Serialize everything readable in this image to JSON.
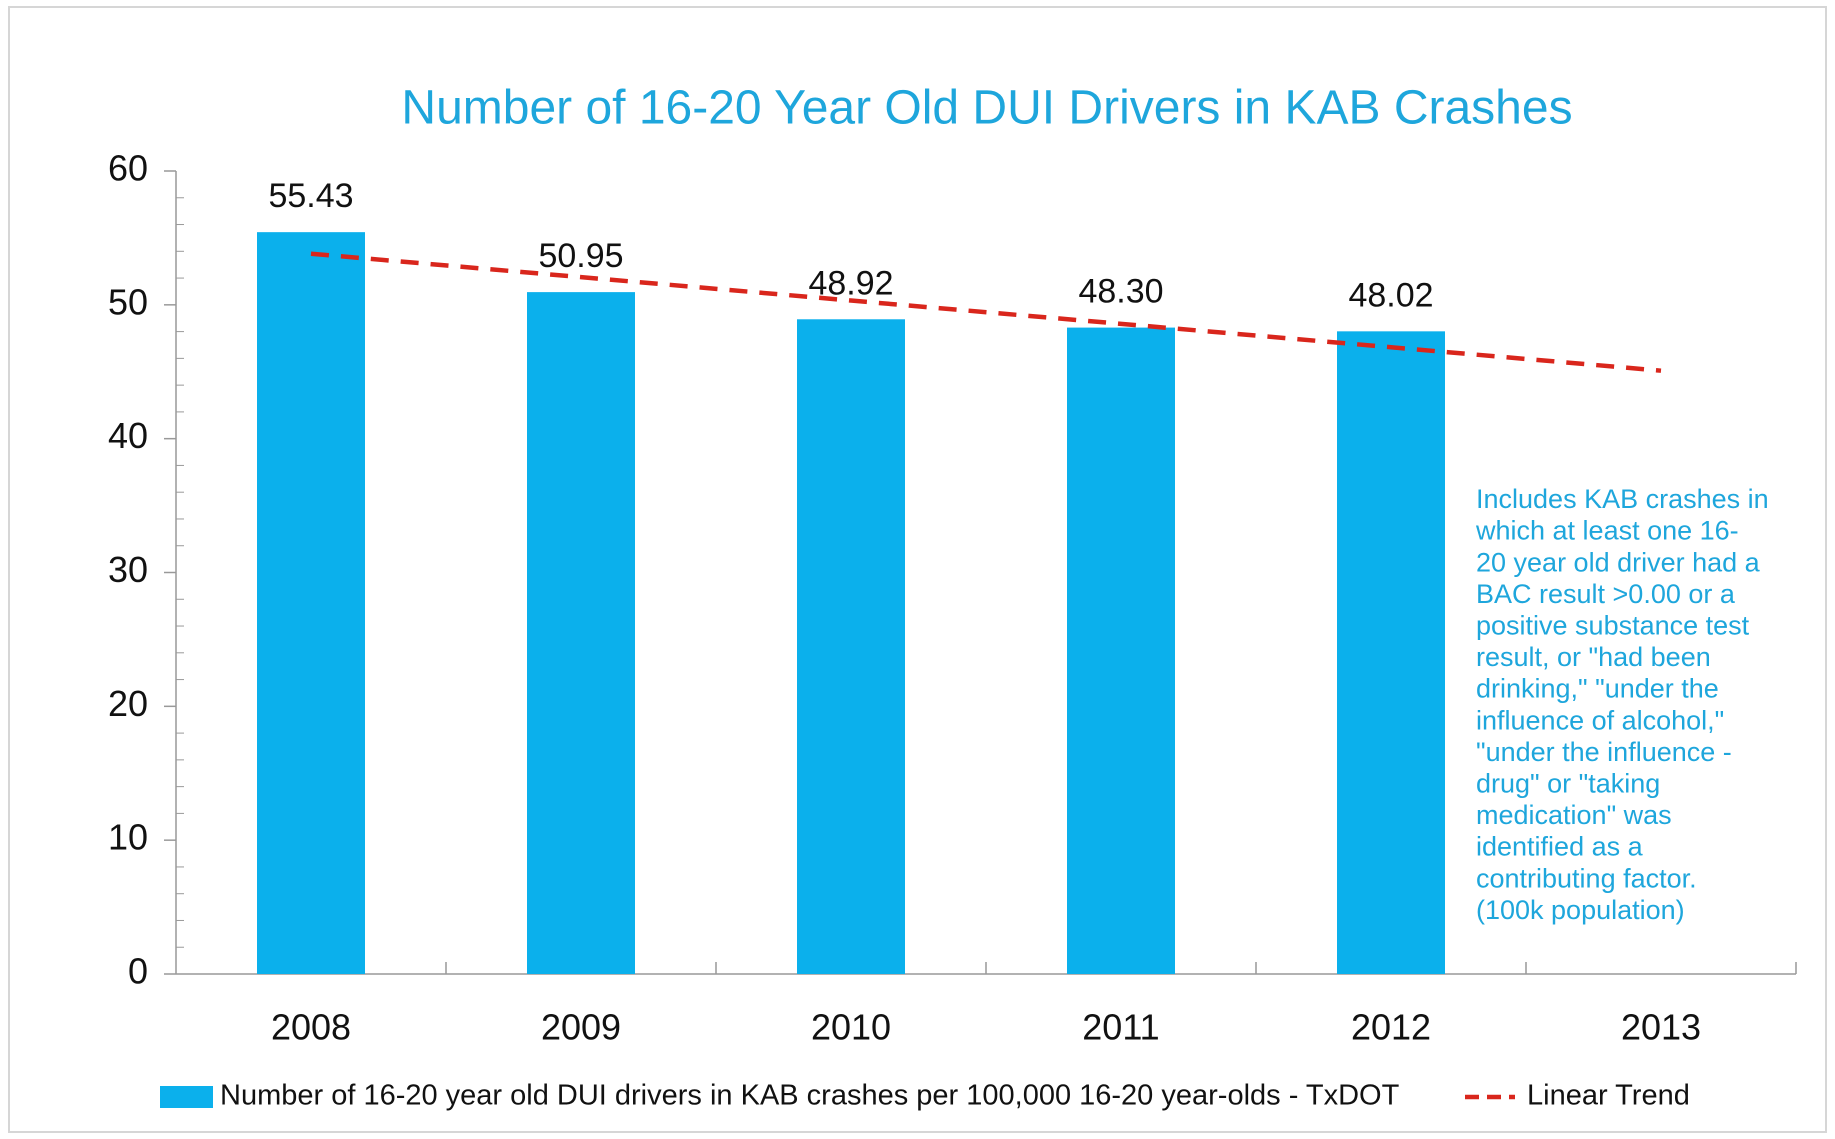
{
  "chart_data": {
    "type": "bar",
    "title": "Number of 16-20 Year Old DUI Drivers in KAB Crashes",
    "categories": [
      "2008",
      "2009",
      "2010",
      "2011",
      "2012",
      "2013"
    ],
    "series": [
      {
        "name": "Number of 16-20 year old DUI drivers in KAB crashes per 100,000 16-20 year-olds - TxDOT",
        "type": "bar",
        "color": "#0bb0ec",
        "values": [
          55.43,
          50.95,
          48.92,
          48.3,
          48.02,
          null
        ],
        "value_labels": [
          "55.43",
          "50.95",
          "48.92",
          "48.30",
          "48.02",
          null
        ]
      },
      {
        "name": "Linear Trend",
        "type": "line",
        "color": "#d9261c",
        "values": [
          53.82,
          52.07,
          50.32,
          48.58,
          46.83,
          45.08
        ]
      }
    ],
    "ylim": [
      0,
      60
    ],
    "yticks": [
      0,
      10,
      20,
      30,
      40,
      50,
      60
    ],
    "annotation": [
      "Includes KAB crashes in",
      "which at least one 16-",
      "20 year old driver had a",
      "BAC result >0.00 or a",
      "positive substance test",
      "result, or \"had been",
      "drinking,\" \"under the",
      "influence of alcohol,\"",
      "\"under the influence -",
      "drug\" or \"taking",
      "medication\" was",
      "identified as a",
      "contributing factor.",
      "(100k population)"
    ]
  }
}
